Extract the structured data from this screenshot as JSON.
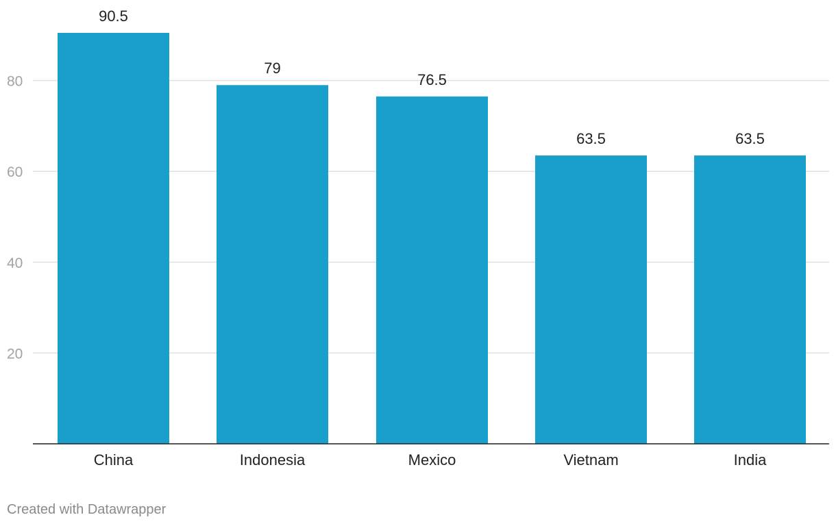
{
  "chart_data": {
    "type": "bar",
    "title": "",
    "xlabel": "",
    "ylabel": "",
    "categories": [
      "China",
      "Indonesia",
      "Mexico",
      "Vietnam",
      "India"
    ],
    "values": [
      90.5,
      79,
      76.5,
      63.5,
      63.5
    ],
    "value_labels": [
      "90.5",
      "79",
      "76.5",
      "63.5",
      "63.5"
    ],
    "ylim": [
      0,
      90.5
    ],
    "yticks": [
      20,
      40,
      60,
      80
    ],
    "grid": true,
    "legend": "none",
    "bar_color": "#199fcc"
  },
  "footer": {
    "credit": "Created with Datawrapper"
  }
}
